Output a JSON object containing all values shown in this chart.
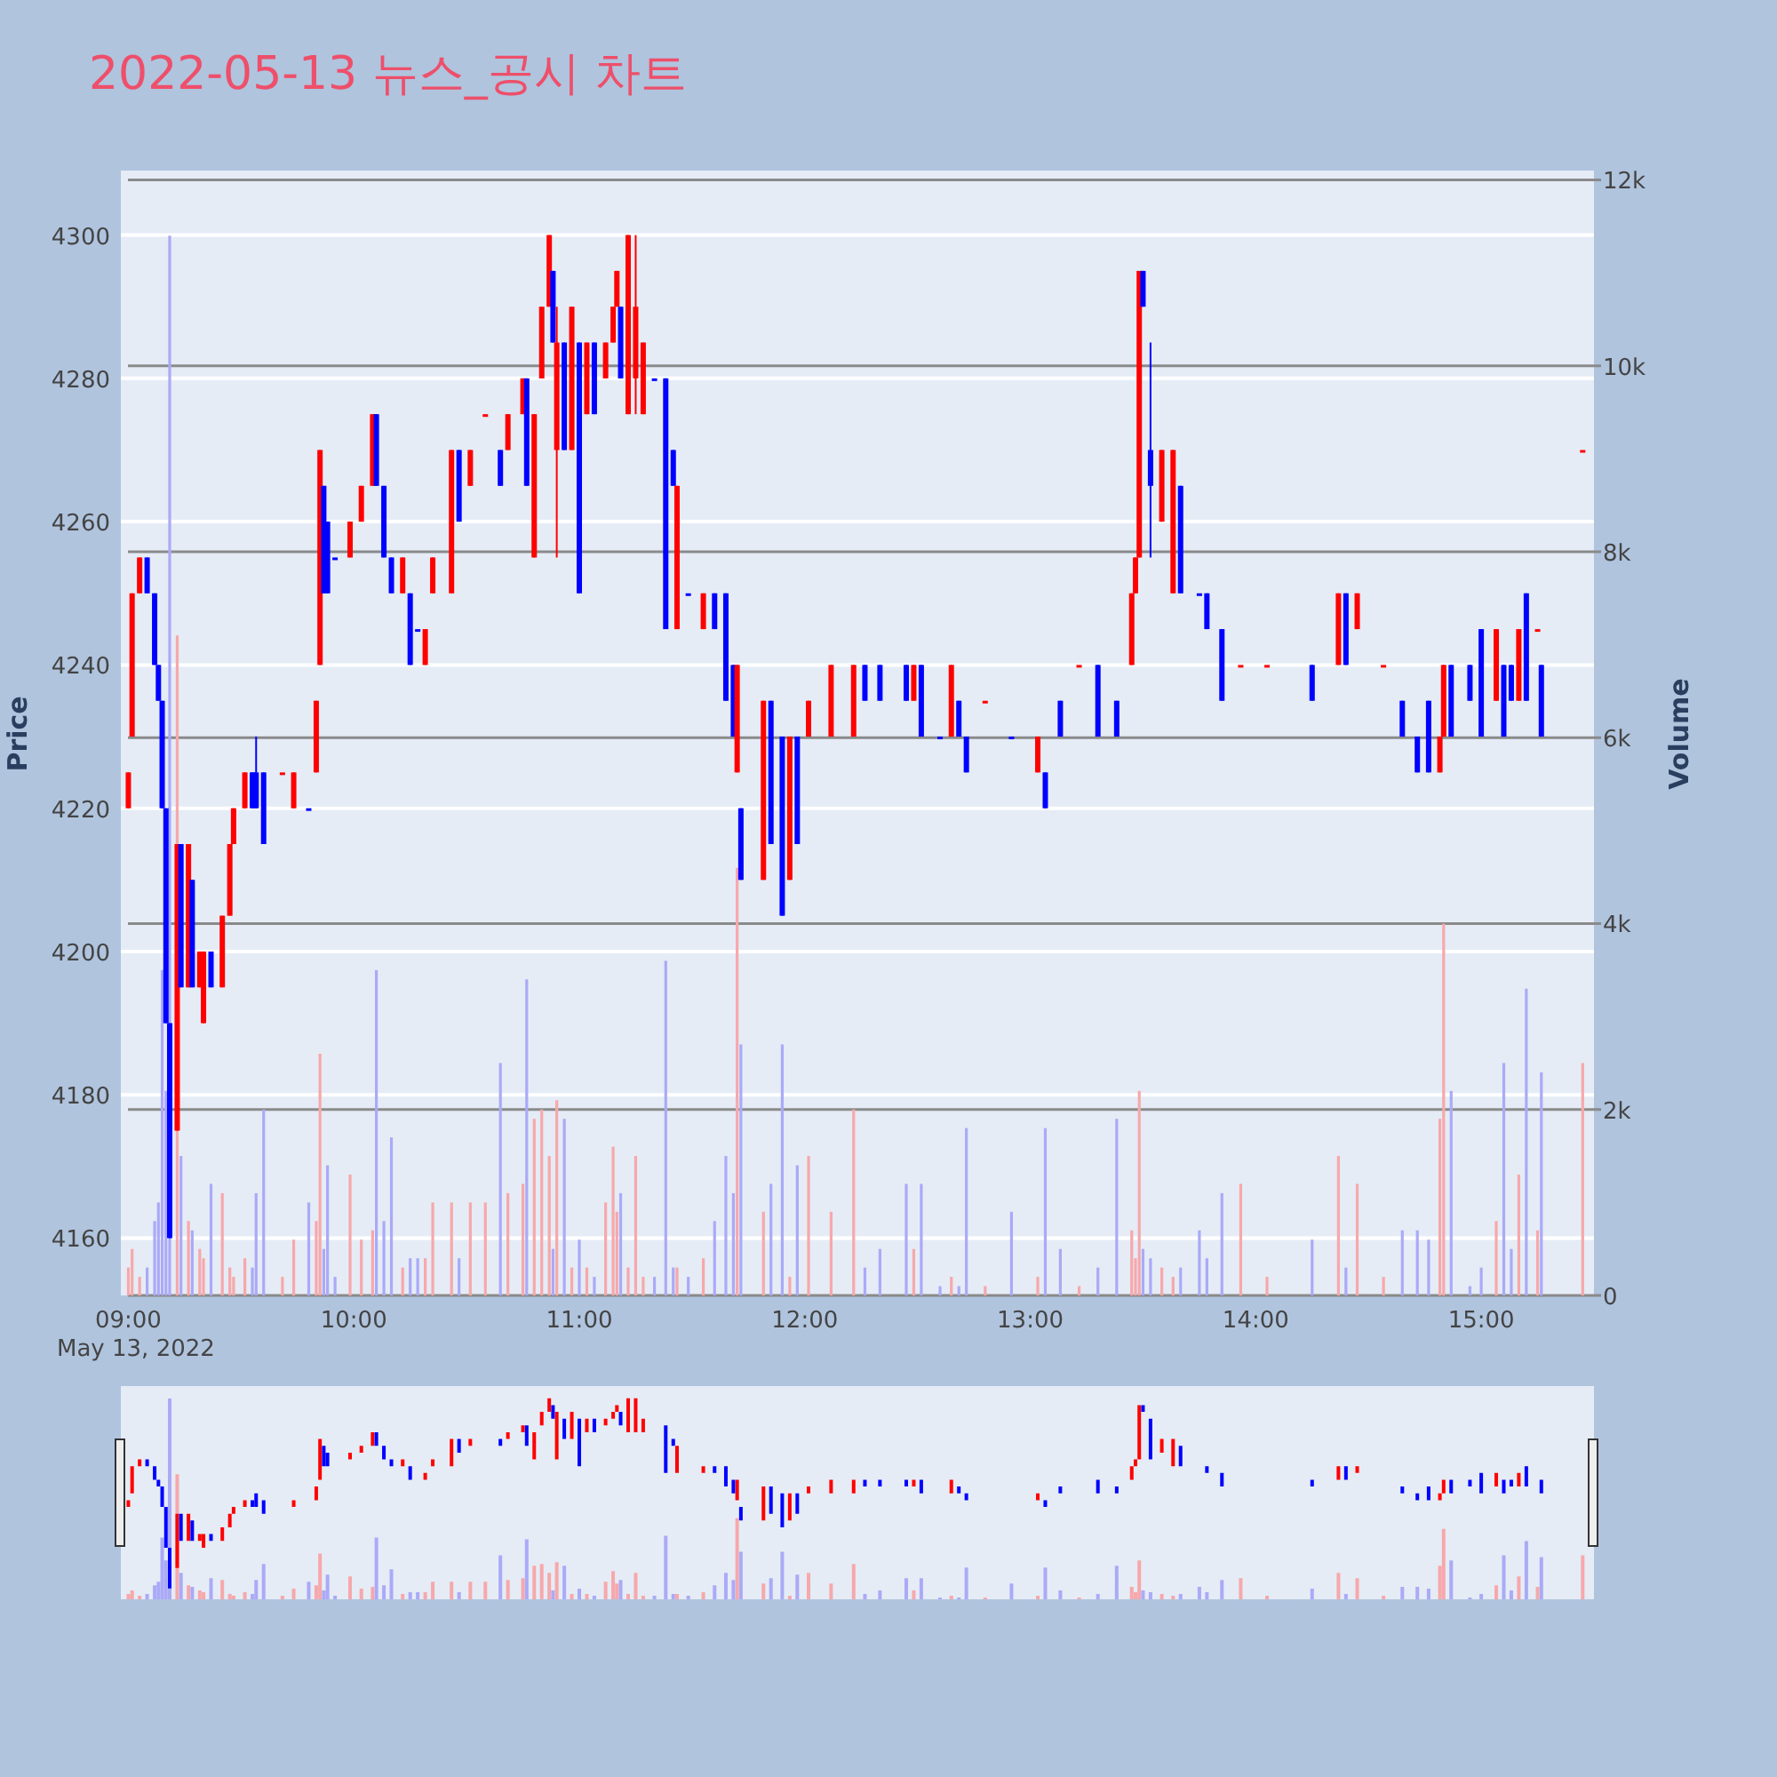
{
  "chart_data": {
    "type": "candlestick",
    "title": "2022-05-13 뉴스_공시 차트",
    "ylabel": "Price",
    "y2label": "Volume",
    "annotations": [
      "May 13, 2022"
    ],
    "xlim": [
      "2022-05-13T08:58",
      "2022-05-13T15:30"
    ],
    "xticks": [
      {
        "value": "2022-05-13T09:00",
        "label": "09:00"
      },
      {
        "value": "2022-05-13T10:00",
        "label": "10:00"
      },
      {
        "value": "2022-05-13T11:00",
        "label": "11:00"
      },
      {
        "value": "2022-05-13T12:00",
        "label": "12:00"
      },
      {
        "value": "2022-05-13T13:00",
        "label": "13:00"
      },
      {
        "value": "2022-05-13T14:00",
        "label": "14:00"
      },
      {
        "value": "2022-05-13T15:00",
        "label": "15:00"
      }
    ],
    "ylim": [
      4152,
      4309
    ],
    "yticks": [
      4160,
      4180,
      4200,
      4220,
      4240,
      4260,
      4280,
      4300
    ],
    "y2lim": [
      0,
      12100
    ],
    "y2ticks": [
      0,
      {
        "value": 2000,
        "label": "2k"
      },
      {
        "value": 4000,
        "label": "4k"
      },
      {
        "value": 6000,
        "label": "6k"
      },
      {
        "value": 8000,
        "label": "8k"
      },
      {
        "value": 10000,
        "label": "10k"
      },
      {
        "value": 12000,
        "label": "12k"
      }
    ],
    "grid": "y",
    "x": [
      "2022-05-13T09:00",
      "2022-05-13T09:01",
      "2022-05-13T09:03",
      "2022-05-13T09:05",
      "2022-05-13T09:07",
      "2022-05-13T09:08",
      "2022-05-13T09:09",
      "2022-05-13T09:10",
      "2022-05-13T09:11",
      "2022-05-13T09:13",
      "2022-05-13T09:14",
      "2022-05-13T09:16",
      "2022-05-13T09:17",
      "2022-05-13T09:19",
      "2022-05-13T09:20",
      "2022-05-13T09:22",
      "2022-05-13T09:25",
      "2022-05-13T09:27",
      "2022-05-13T09:28",
      "2022-05-13T09:31",
      "2022-05-13T09:33",
      "2022-05-13T09:34",
      "2022-05-13T09:36",
      "2022-05-13T09:41",
      "2022-05-13T09:44",
      "2022-05-13T09:48",
      "2022-05-13T09:50",
      "2022-05-13T09:51",
      "2022-05-13T09:52",
      "2022-05-13T09:53",
      "2022-05-13T09:55",
      "2022-05-13T09:59",
      "2022-05-13T10:02",
      "2022-05-13T10:05",
      "2022-05-13T10:06",
      "2022-05-13T10:08",
      "2022-05-13T10:10",
      "2022-05-13T10:13",
      "2022-05-13T10:15",
      "2022-05-13T10:17",
      "2022-05-13T10:19",
      "2022-05-13T10:21",
      "2022-05-13T10:26",
      "2022-05-13T10:28",
      "2022-05-13T10:31",
      "2022-05-13T10:35",
      "2022-05-13T10:39",
      "2022-05-13T10:41",
      "2022-05-13T10:45",
      "2022-05-13T10:46",
      "2022-05-13T10:48",
      "2022-05-13T10:50",
      "2022-05-13T10:52",
      "2022-05-13T10:53",
      "2022-05-13T10:54",
      "2022-05-13T10:56",
      "2022-05-13T10:58",
      "2022-05-13T11:00",
      "2022-05-13T11:02",
      "2022-05-13T11:04",
      "2022-05-13T11:07",
      "2022-05-13T11:09",
      "2022-05-13T11:10",
      "2022-05-13T11:11",
      "2022-05-13T11:13",
      "2022-05-13T11:15",
      "2022-05-13T11:17",
      "2022-05-13T11:20",
      "2022-05-13T11:23",
      "2022-05-13T11:25",
      "2022-05-13T11:26",
      "2022-05-13T11:29",
      "2022-05-13T11:33",
      "2022-05-13T11:36",
      "2022-05-13T11:39",
      "2022-05-13T11:41",
      "2022-05-13T11:42",
      "2022-05-13T11:43",
      "2022-05-13T11:49",
      "2022-05-13T11:51",
      "2022-05-13T11:54",
      "2022-05-13T11:56",
      "2022-05-13T11:58",
      "2022-05-13T12:01",
      "2022-05-13T12:07",
      "2022-05-13T12:13",
      "2022-05-13T12:16",
      "2022-05-13T12:20",
      "2022-05-13T12:27",
      "2022-05-13T12:29",
      "2022-05-13T12:31",
      "2022-05-13T12:36",
      "2022-05-13T12:39",
      "2022-05-13T12:41",
      "2022-05-13T12:43",
      "2022-05-13T12:48",
      "2022-05-13T12:55",
      "2022-05-13T13:02",
      "2022-05-13T13:04",
      "2022-05-13T13:08",
      "2022-05-13T13:13",
      "2022-05-13T13:18",
      "2022-05-13T13:23",
      "2022-05-13T13:27",
      "2022-05-13T13:28",
      "2022-05-13T13:29",
      "2022-05-13T13:30",
      "2022-05-13T13:32",
      "2022-05-13T13:35",
      "2022-05-13T13:38",
      "2022-05-13T13:40",
      "2022-05-13T13:45",
      "2022-05-13T13:47",
      "2022-05-13T13:51",
      "2022-05-13T13:56",
      "2022-05-13T14:03",
      "2022-05-13T14:15",
      "2022-05-13T14:22",
      "2022-05-13T14:24",
      "2022-05-13T14:27",
      "2022-05-13T14:34",
      "2022-05-13T14:39",
      "2022-05-13T14:43",
      "2022-05-13T14:46",
      "2022-05-13T14:49",
      "2022-05-13T14:50",
      "2022-05-13T14:52",
      "2022-05-13T14:57",
      "2022-05-13T15:00",
      "2022-05-13T15:04",
      "2022-05-13T15:06",
      "2022-05-13T15:08",
      "2022-05-13T15:10",
      "2022-05-13T15:12",
      "2022-05-13T15:15",
      "2022-05-13T15:16",
      "2022-05-13T15:27"
    ],
    "series": [
      {
        "type": "candlestick",
        "ohlc": [
          [
            4220,
            4225,
            4220,
            4225
          ],
          [
            4230,
            4250,
            4230,
            4250
          ],
          [
            4250,
            4255,
            4250,
            4255
          ],
          [
            4255,
            4255,
            4250,
            4250
          ],
          [
            4250,
            4250,
            4240,
            4240
          ],
          [
            4240,
            4240,
            4235,
            4235
          ],
          [
            4235,
            4235,
            4220,
            4220
          ],
          [
            4220,
            4220,
            4190,
            4190
          ],
          [
            4190,
            4190,
            4160,
            4160
          ],
          [
            4175,
            4215,
            4175,
            4215
          ],
          [
            4215,
            4215,
            4195,
            4195
          ],
          [
            4195,
            4215,
            4195,
            4215
          ],
          [
            4210,
            4210,
            4195,
            4195
          ],
          [
            4195,
            4200,
            4195,
            4200
          ],
          [
            4190,
            4200,
            4190,
            4200
          ],
          [
            4200,
            4200,
            4195,
            4195
          ],
          [
            4195,
            4205,
            4195,
            4205
          ],
          [
            4205,
            4215,
            4205,
            4215
          ],
          [
            4215,
            4220,
            4215,
            4220
          ],
          [
            4220,
            4225,
            4220,
            4225
          ],
          [
            4225,
            4225,
            4220,
            4220
          ],
          [
            4225,
            4230,
            4220,
            4220
          ],
          [
            4225,
            4225,
            4215,
            4215
          ],
          [
            4225,
            4225,
            4225,
            4225
          ],
          [
            4220,
            4225,
            4220,
            4225
          ],
          [
            4220,
            4220,
            4220,
            4220
          ],
          [
            4225,
            4235,
            4225,
            4235
          ],
          [
            4240,
            4270,
            4240,
            4270
          ],
          [
            4265,
            4265,
            4250,
            4250
          ],
          [
            4260,
            4260,
            4250,
            4250
          ],
          [
            4255,
            4255,
            4255,
            4255
          ],
          [
            4255,
            4260,
            4255,
            4260
          ],
          [
            4260,
            4265,
            4260,
            4265
          ],
          [
            4265,
            4275,
            4265,
            4275
          ],
          [
            4275,
            4275,
            4265,
            4265
          ],
          [
            4265,
            4265,
            4255,
            4255
          ],
          [
            4255,
            4255,
            4250,
            4250
          ],
          [
            4250,
            4255,
            4250,
            4255
          ],
          [
            4250,
            4250,
            4240,
            4240
          ],
          [
            4245,
            4245,
            4245,
            4245
          ],
          [
            4240,
            4245,
            4240,
            4245
          ],
          [
            4250,
            4255,
            4250,
            4255
          ],
          [
            4250,
            4270,
            4250,
            4270
          ],
          [
            4270,
            4270,
            4260,
            4260
          ],
          [
            4265,
            4270,
            4265,
            4270
          ],
          [
            4275,
            4275,
            4275,
            4275
          ],
          [
            4270,
            4270,
            4265,
            4265
          ],
          [
            4270,
            4275,
            4270,
            4275
          ],
          [
            4275,
            4280,
            4275,
            4280
          ],
          [
            4280,
            4280,
            4265,
            4265
          ],
          [
            4255,
            4275,
            4255,
            4275
          ],
          [
            4280,
            4290,
            4280,
            4290
          ],
          [
            4290,
            4300,
            4290,
            4300
          ],
          [
            4295,
            4295,
            4285,
            4285
          ],
          [
            4270,
            4290,
            4255,
            4285
          ],
          [
            4285,
            4285,
            4270,
            4270
          ],
          [
            4270,
            4290,
            4270,
            4290
          ],
          [
            4285,
            4285,
            4250,
            4250
          ],
          [
            4275,
            4285,
            4275,
            4285
          ],
          [
            4285,
            4285,
            4275,
            4275
          ],
          [
            4280,
            4285,
            4280,
            4285
          ],
          [
            4285,
            4290,
            4285,
            4290
          ],
          [
            4290,
            4295,
            4290,
            4295
          ],
          [
            4290,
            4290,
            4280,
            4280
          ],
          [
            4275,
            4300,
            4275,
            4300
          ],
          [
            4280,
            4300,
            4275,
            4290
          ],
          [
            4275,
            4285,
            4275,
            4285
          ],
          [
            4280,
            4280,
            4280,
            4280
          ],
          [
            4280,
            4280,
            4245,
            4245
          ],
          [
            4270,
            4270,
            4265,
            4265
          ],
          [
            4245,
            4265,
            4245,
            4265
          ],
          [
            4250,
            4250,
            4250,
            4250
          ],
          [
            4245,
            4250,
            4245,
            4250
          ],
          [
            4250,
            4250,
            4245,
            4245
          ],
          [
            4250,
            4250,
            4235,
            4235
          ],
          [
            4240,
            4240,
            4230,
            4230
          ],
          [
            4225,
            4240,
            4225,
            4240
          ],
          [
            4220,
            4220,
            4210,
            4210
          ],
          [
            4210,
            4235,
            4210,
            4235
          ],
          [
            4235,
            4235,
            4215,
            4215
          ],
          [
            4230,
            4230,
            4205,
            4205
          ],
          [
            4210,
            4230,
            4210,
            4230
          ],
          [
            4230,
            4230,
            4215,
            4215
          ],
          [
            4230,
            4235,
            4230,
            4235
          ],
          [
            4230,
            4240,
            4230,
            4240
          ],
          [
            4230,
            4240,
            4230,
            4240
          ],
          [
            4240,
            4240,
            4235,
            4235
          ],
          [
            4240,
            4240,
            4235,
            4235
          ],
          [
            4240,
            4240,
            4235,
            4235
          ],
          [
            4235,
            4240,
            4235,
            4240
          ],
          [
            4240,
            4240,
            4230,
            4230
          ],
          [
            4230,
            4230,
            4230,
            4230
          ],
          [
            4230,
            4240,
            4230,
            4240
          ],
          [
            4235,
            4235,
            4230,
            4230
          ],
          [
            4230,
            4230,
            4225,
            4225
          ],
          [
            4235,
            4235,
            4235,
            4235
          ],
          [
            4230,
            4230,
            4230,
            4230
          ],
          [
            4225,
            4230,
            4225,
            4230
          ],
          [
            4225,
            4225,
            4220,
            4220
          ],
          [
            4235,
            4235,
            4230,
            4230
          ],
          [
            4240,
            4240,
            4240,
            4240
          ],
          [
            4240,
            4240,
            4230,
            4230
          ],
          [
            4235,
            4235,
            4230,
            4230
          ],
          [
            4240,
            4250,
            4240,
            4250
          ],
          [
            4250,
            4255,
            4250,
            4255
          ],
          [
            4255,
            4295,
            4255,
            4295
          ],
          [
            4295,
            4295,
            4290,
            4290
          ],
          [
            4270,
            4285,
            4255,
            4265
          ],
          [
            4260,
            4270,
            4260,
            4270
          ],
          [
            4250,
            4270,
            4250,
            4270
          ],
          [
            4265,
            4265,
            4250,
            4250
          ],
          [
            4250,
            4250,
            4250,
            4250
          ],
          [
            4250,
            4250,
            4245,
            4245
          ],
          [
            4245,
            4245,
            4235,
            4235
          ],
          [
            4240,
            4240,
            4240,
            4240
          ],
          [
            4240,
            4240,
            4240,
            4240
          ],
          [
            4240,
            4240,
            4235,
            4235
          ],
          [
            4240,
            4250,
            4240,
            4250
          ],
          [
            4250,
            4250,
            4240,
            4240
          ],
          [
            4245,
            4250,
            4245,
            4250
          ],
          [
            4240,
            4240,
            4240,
            4240
          ],
          [
            4235,
            4235,
            4230,
            4230
          ],
          [
            4230,
            4230,
            4225,
            4225
          ],
          [
            4235,
            4235,
            4225,
            4225
          ],
          [
            4225,
            4230,
            4225,
            4230
          ],
          [
            4230,
            4240,
            4230,
            4240
          ],
          [
            4240,
            4240,
            4230,
            4230
          ],
          [
            4240,
            4240,
            4235,
            4235
          ],
          [
            4245,
            4245,
            4230,
            4230
          ],
          [
            4235,
            4245,
            4235,
            4245
          ],
          [
            4240,
            4240,
            4230,
            4230
          ],
          [
            4240,
            4240,
            4235,
            4235
          ],
          [
            4235,
            4245,
            4235,
            4245
          ],
          [
            4250,
            4250,
            4235,
            4235
          ],
          [
            4245,
            4245,
            4245,
            4245
          ],
          [
            4240,
            4240,
            4230,
            4230
          ],
          [
            4270,
            4270,
            4270,
            4270
          ]
        ],
        "colors": [
          "#ff0000",
          "#ff0000",
          "#ff0000",
          "#0000ff",
          "#0000ff",
          "#0000ff",
          "#0000ff",
          "#0000ff",
          "#0000ff",
          "#ff0000",
          "#0000ff",
          "#ff0000",
          "#0000ff",
          "#ff0000",
          "#ff0000",
          "#0000ff",
          "#ff0000",
          "#ff0000",
          "#ff0000",
          "#ff0000",
          "#0000ff",
          "#0000ff",
          "#0000ff",
          "#ff0000",
          "#ff0000",
          "#0000ff",
          "#ff0000",
          "#ff0000",
          "#0000ff",
          "#0000ff",
          "#0000ff",
          "#ff0000",
          "#ff0000",
          "#ff0000",
          "#0000ff",
          "#0000ff",
          "#0000ff",
          "#ff0000",
          "#0000ff",
          "#0000ff",
          "#ff0000",
          "#ff0000",
          "#ff0000",
          "#0000ff",
          "#ff0000",
          "#ff0000",
          "#0000ff",
          "#ff0000",
          "#ff0000",
          "#0000ff",
          "#ff0000",
          "#ff0000",
          "#ff0000",
          "#0000ff",
          "#ff0000",
          "#0000ff",
          "#ff0000",
          "#0000ff",
          "#ff0000",
          "#0000ff",
          "#ff0000",
          "#ff0000",
          "#ff0000",
          "#0000ff",
          "#ff0000",
          "#ff0000",
          "#ff0000",
          "#0000ff",
          "#0000ff",
          "#0000ff",
          "#ff0000",
          "#0000ff",
          "#ff0000",
          "#0000ff",
          "#0000ff",
          "#0000ff",
          "#ff0000",
          "#0000ff",
          "#ff0000",
          "#0000ff",
          "#0000ff",
          "#ff0000",
          "#0000ff",
          "#ff0000",
          "#ff0000",
          "#ff0000",
          "#0000ff",
          "#0000ff",
          "#0000ff",
          "#ff0000",
          "#0000ff",
          "#0000ff",
          "#ff0000",
          "#0000ff",
          "#0000ff",
          "#ff0000",
          "#0000ff",
          "#ff0000",
          "#0000ff",
          "#0000ff",
          "#ff0000",
          "#0000ff",
          "#0000ff",
          "#ff0000",
          "#ff0000",
          "#ff0000",
          "#0000ff",
          "#0000ff",
          "#ff0000",
          "#ff0000",
          "#0000ff",
          "#0000ff",
          "#0000ff",
          "#0000ff",
          "#ff0000",
          "#ff0000",
          "#0000ff",
          "#ff0000",
          "#0000ff",
          "#ff0000",
          "#ff0000",
          "#0000ff",
          "#0000ff",
          "#0000ff",
          "#ff0000",
          "#ff0000",
          "#0000ff",
          "#0000ff",
          "#0000ff",
          "#ff0000",
          "#0000ff",
          "#0000ff",
          "#ff0000",
          "#0000ff",
          "#ff0000",
          "#0000ff",
          "#ff0000"
        ]
      },
      {
        "type": "bar",
        "axis": "y2",
        "values": [
          300,
          500,
          200,
          300,
          800,
          1000,
          3500,
          2200,
          11400,
          7100,
          1500,
          800,
          700,
          500,
          400,
          1200,
          1100,
          300,
          200,
          400,
          300,
          1100,
          2000,
          200,
          600,
          1000,
          800,
          2600,
          500,
          1400,
          200,
          1300,
          600,
          700,
          3500,
          800,
          1700,
          300,
          400,
          400,
          400,
          1000,
          1000,
          400,
          1000,
          1000,
          2500,
          1100,
          1200,
          3400,
          1900,
          2000,
          1500,
          500,
          2100,
          1900,
          300,
          600,
          300,
          200,
          1000,
          1600,
          900,
          1100,
          300,
          1500,
          200,
          200,
          3600,
          300,
          300,
          200,
          400,
          800,
          1500,
          1100,
          4600,
          2700,
          900,
          1200,
          2700,
          200,
          1400,
          1500,
          900,
          2000,
          300,
          500,
          1200,
          500,
          1200,
          100,
          200,
          100,
          1800,
          100,
          900,
          200,
          1800,
          500,
          100,
          300,
          1900,
          700,
          400,
          2200,
          500,
          400,
          300,
          200,
          300,
          700,
          400,
          1100,
          1200,
          200,
          600,
          1500,
          300,
          1200,
          200,
          700,
          700,
          600,
          1900,
          4000,
          2200,
          100,
          300,
          800,
          2500,
          500,
          1300,
          3300,
          700,
          2400,
          2500
        ],
        "colors": [
          "#f7a8ab",
          "#f7a8ab",
          "#f7a8ab",
          "#aaaaf7",
          "#aaaaf7",
          "#aaaaf7",
          "#aaaaf7",
          "#aaaaf7",
          "#aaaaf7",
          "#f7a8ab",
          "#aaaaf7",
          "#f7a8ab",
          "#aaaaf7",
          "#f7a8ab",
          "#f7a8ab",
          "#aaaaf7",
          "#f7a8ab",
          "#f7a8ab",
          "#f7a8ab",
          "#f7a8ab",
          "#aaaaf7",
          "#aaaaf7",
          "#aaaaf7",
          "#f7a8ab",
          "#f7a8ab",
          "#aaaaf7",
          "#f7a8ab",
          "#f7a8ab",
          "#aaaaf7",
          "#aaaaf7",
          "#aaaaf7",
          "#f7a8ab",
          "#f7a8ab",
          "#f7a8ab",
          "#aaaaf7",
          "#aaaaf7",
          "#aaaaf7",
          "#f7a8ab",
          "#aaaaf7",
          "#aaaaf7",
          "#f7a8ab",
          "#f7a8ab",
          "#f7a8ab",
          "#aaaaf7",
          "#f7a8ab",
          "#f7a8ab",
          "#aaaaf7",
          "#f7a8ab",
          "#f7a8ab",
          "#aaaaf7",
          "#f7a8ab",
          "#f7a8ab",
          "#f7a8ab",
          "#aaaaf7",
          "#f7a8ab",
          "#aaaaf7",
          "#f7a8ab",
          "#aaaaf7",
          "#f7a8ab",
          "#aaaaf7",
          "#f7a8ab",
          "#f7a8ab",
          "#f7a8ab",
          "#aaaaf7",
          "#f7a8ab",
          "#f7a8ab",
          "#f7a8ab",
          "#aaaaf7",
          "#aaaaf7",
          "#aaaaf7",
          "#f7a8ab",
          "#aaaaf7",
          "#f7a8ab",
          "#aaaaf7",
          "#aaaaf7",
          "#aaaaf7",
          "#f7a8ab",
          "#aaaaf7",
          "#f7a8ab",
          "#aaaaf7",
          "#aaaaf7",
          "#f7a8ab",
          "#aaaaf7",
          "#f7a8ab",
          "#f7a8ab",
          "#f7a8ab",
          "#aaaaf7",
          "#aaaaf7",
          "#aaaaf7",
          "#f7a8ab",
          "#aaaaf7",
          "#aaaaf7",
          "#f7a8ab",
          "#aaaaf7",
          "#aaaaf7",
          "#f7a8ab",
          "#aaaaf7",
          "#f7a8ab",
          "#aaaaf7",
          "#aaaaf7",
          "#f7a8ab",
          "#aaaaf7",
          "#aaaaf7",
          "#f7a8ab",
          "#f7a8ab",
          "#f7a8ab",
          "#aaaaf7",
          "#aaaaf7",
          "#f7a8ab",
          "#f7a8ab",
          "#aaaaf7",
          "#aaaaf7",
          "#aaaaf7",
          "#aaaaf7",
          "#f7a8ab",
          "#f7a8ab",
          "#aaaaf7",
          "#f7a8ab",
          "#aaaaf7",
          "#f7a8ab",
          "#f7a8ab",
          "#aaaaf7",
          "#aaaaf7",
          "#aaaaf7",
          "#f7a8ab",
          "#f7a8ab",
          "#aaaaf7",
          "#aaaaf7",
          "#aaaaf7",
          "#f7a8ab",
          "#aaaaf7",
          "#aaaaf7",
          "#f7a8ab",
          "#aaaaf7",
          "#f7a8ab",
          "#aaaaf7",
          "#f7a8ab"
        ]
      }
    ]
  }
}
